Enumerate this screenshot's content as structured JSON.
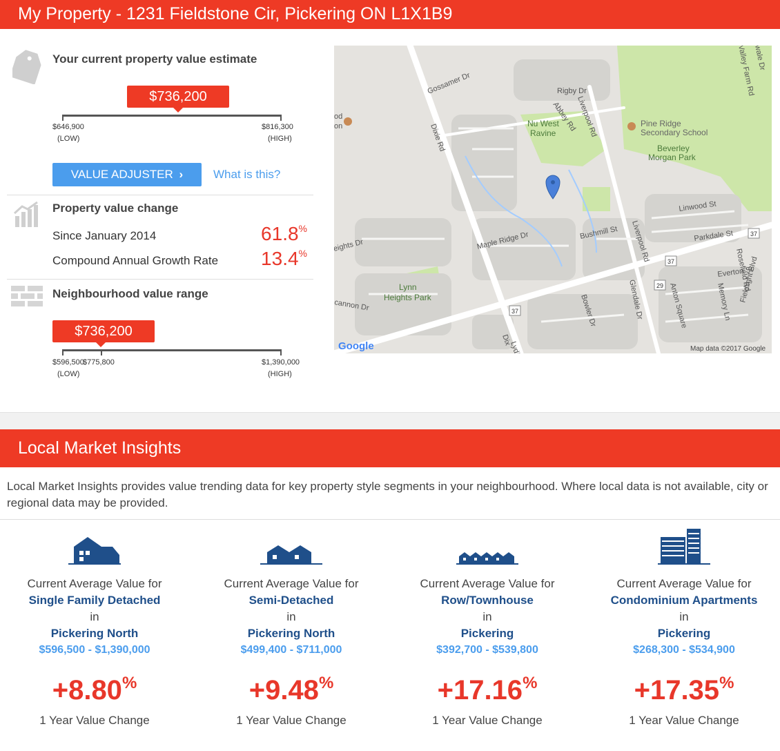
{
  "header": {
    "title": "My Property - 1231 Fieldstone Cir, Pickering ON L1X1B9"
  },
  "estimate": {
    "title": "Your current property value estimate",
    "value": "$736,200",
    "low": "$646,900",
    "low_label": "(LOW)",
    "high": "$816,300",
    "high_label": "(HIGH)",
    "position": 0.52,
    "adjuster_label": "VALUE ADJUSTER",
    "what_label": "What is this?"
  },
  "value_change": {
    "title": "Property value change",
    "rows": [
      {
        "label": "Since January 2014",
        "value": "61.8",
        "unit": "%"
      },
      {
        "label": "Compound Annual Growth Rate",
        "value": "13.4",
        "unit": "%"
      }
    ]
  },
  "neighbourhood": {
    "title": "Neighbourhood value range",
    "value": "$736,200",
    "low": "$596,500",
    "low_label": "(LOW)",
    "mid": "$775,800",
    "high": "$1,390,000",
    "high_label": "(HIGH)",
    "position": 0.18
  },
  "map": {
    "labels": {
      "gossamer": "Gossamer Dr",
      "rigby": "Rigby Dr",
      "abbey": "Abbey Rd",
      "liverpool1": "Liverpool Rd",
      "liverpool2": "Liverpool Rd",
      "nuwest": "Nu West",
      "ravine": "Ravine",
      "pineridge1": "Pine Ridge",
      "pineridge2": "Secondary School",
      "beverley1": "Beverley",
      "beverley2": "Morgan Park",
      "dixie": "Dixie Rd",
      "dixie2": "Dix",
      "linwood": "Linwood St",
      "parkdale": "Parkdale St",
      "bushmill": "Bushmill St",
      "mapleridge": "Maple Ridge Dr",
      "heights": "eights Dr",
      "lynn1": "Lynn",
      "lynn2": "Heights Park",
      "cannon": "cannon Dr",
      "bowler": "Bowler Dr",
      "glendale": "Glendale Dr",
      "anton": "Anton Square",
      "everton": "Everton St",
      "memory": "Memory Ln",
      "rosefield": "Rosefield Rd",
      "fieldlight": "Fieldlight Blvd",
      "valleyfarm": "Valley Farm Rd",
      "wale": "wale Dr",
      "lydia": "Lydia",
      "od": "od",
      "on": "on",
      "s37a": "37",
      "s37b": "37",
      "s37c": "37",
      "s29": "29",
      "google": "Google",
      "mapdata": "Map data ©2017 Google"
    }
  },
  "insights": {
    "title": "Local Market Insights",
    "intro": "Local Market Insights provides value trending data for key property style segments in your neighbourhood. Where local data is not available, city or regional data may be provided.",
    "cards": [
      {
        "icon": "single-family-house-icon",
        "line1": "Current Average Value for",
        "style": "Single Family Detached",
        "in": "in",
        "area": "Pickering North",
        "range": "$596,500 - $1,390,000",
        "change": "+8.80",
        "unit": "%",
        "foot": "1 Year Value Change"
      },
      {
        "icon": "semi-detached-house-icon",
        "line1": "Current Average Value for",
        "style": "Semi-Detached",
        "in": "in",
        "area": "Pickering North",
        "range": "$499,400 - $711,000",
        "change": "+9.48",
        "unit": "%",
        "foot": "1 Year Value Change"
      },
      {
        "icon": "townhouse-icon",
        "line1": "Current Average Value for",
        "style": "Row/Townhouse",
        "in": "in",
        "area": "Pickering",
        "range": "$392,700 - $539,800",
        "change": "+17.16",
        "unit": "%",
        "foot": "1 Year Value Change"
      },
      {
        "icon": "condo-building-icon",
        "line1": "Current Average Value for",
        "style": "Condominium Apartments",
        "in": "in",
        "area": "Pickering",
        "range": "$268,300 - $534,900",
        "change": "+17.35",
        "unit": "%",
        "foot": "1 Year Value Change"
      }
    ]
  },
  "colors": {
    "brand_red": "#ee3a25",
    "link_blue": "#4b9ded",
    "navy": "#1f4f8a",
    "pct_red": "#e8372a"
  }
}
